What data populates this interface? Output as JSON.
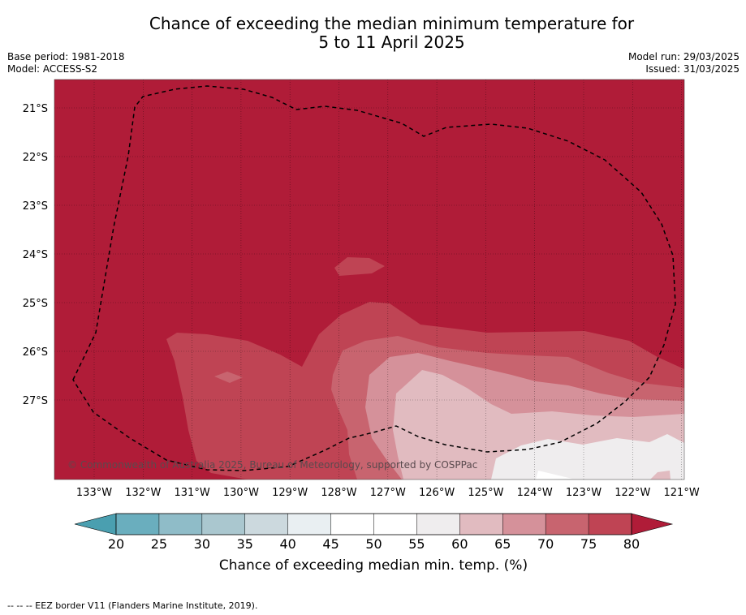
{
  "title_line1": "Chance of exceeding the median minimum temperature for",
  "title_line2": "5 to 11 April 2025",
  "meta": {
    "base_period": "Base period: 1981-2018",
    "model": "Model: ACCESS-S2",
    "model_run": "Model run: 29/03/2025",
    "issued": "Issued: 31/03/2025"
  },
  "map": {
    "lon_labels": [
      "133°W",
      "132°W",
      "131°W",
      "130°W",
      "129°W",
      "128°W",
      "127°W",
      "126°W",
      "125°W",
      "124°W",
      "123°W",
      "122°W",
      "121°W"
    ],
    "lat_labels": [
      "21°S",
      "22°S",
      "23°S",
      "24°S",
      "25°S",
      "26°S",
      "27°S"
    ],
    "copyright": "© Commonwealth of Australia 2025, Bureau of Meteorology, supported by COSPPac"
  },
  "colorbar": {
    "ticks": [
      "20",
      "25",
      "30",
      "35",
      "40",
      "45",
      "50",
      "55",
      "60",
      "65",
      "70",
      "75",
      "80"
    ],
    "label": "Chance of exceeding median min. temp. (%)",
    "colors": {
      "below20": "#4a9fb0",
      "c20_25": "#6aaebe",
      "c25_30": "#8fbcc8",
      "c30_35": "#aac7cf",
      "c35_40": "#ccd9de",
      "c40_45": "#e9eff2",
      "c45_50": "#ffffff",
      "c50_55": "#ffffff",
      "c55_60": "#efedee",
      "c60_65": "#e1bbc0",
      "c65_70": "#d5919a",
      "c70_75": "#c8646f",
      "c75_80": "#bf4454",
      "above80": "#b01c38"
    }
  },
  "footer": "--  --  -- EEZ border V11 (Flanders Marine Institute, 2019)."
}
